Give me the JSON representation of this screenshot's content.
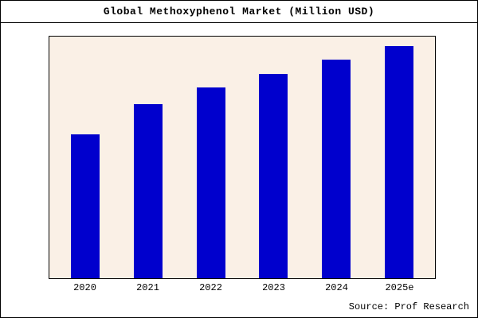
{
  "title": "Global Methoxyphenol Market (Million USD)",
  "source": "Source: Prof Research",
  "colors": {
    "bar": "#0000cd",
    "plot_bg": "#faf0e6",
    "frame_border": "#000000"
  },
  "chart_data": {
    "type": "bar",
    "title": "Global Methoxyphenol Market (Million USD)",
    "categories": [
      "2020",
      "2021",
      "2022",
      "2023",
      "2024",
      "2025e"
    ],
    "values": [
      62,
      75,
      82,
      88,
      94,
      100
    ],
    "xlabel": "",
    "ylabel": "",
    "ylim": [
      0,
      104
    ],
    "grid": false,
    "legend": false,
    "y_axis_ticks_shown": false,
    "annotation": "Source: Prof Research"
  }
}
